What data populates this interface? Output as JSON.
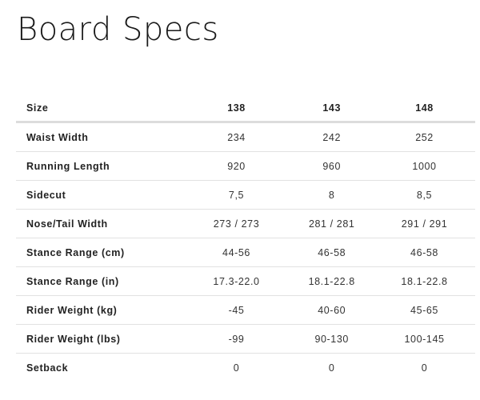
{
  "title": "Board Specs",
  "table": {
    "header": [
      "Size",
      "138",
      "143",
      "148"
    ],
    "rows": [
      [
        "Waist Width",
        "234",
        "242",
        "252"
      ],
      [
        "Running Length",
        "920",
        "960",
        "1000"
      ],
      [
        "Sidecut",
        "7,5",
        "8",
        "8,5"
      ],
      [
        "Nose/Tail Width",
        "273 / 273",
        "281 / 281",
        "291 / 291"
      ],
      [
        "Stance Range (cm)",
        "44-56",
        "46-58",
        "46-58"
      ],
      [
        "Stance Range (in)",
        "17.3-22.0",
        "18.1-22.8",
        "18.1-22.8"
      ],
      [
        "Rider Weight (kg)",
        "-45",
        "40-60",
        "45-65"
      ],
      [
        "Rider Weight (lbs)",
        "-99",
        "90-130",
        "100-145"
      ],
      [
        "Setback",
        "0",
        "0",
        "0"
      ]
    ]
  }
}
